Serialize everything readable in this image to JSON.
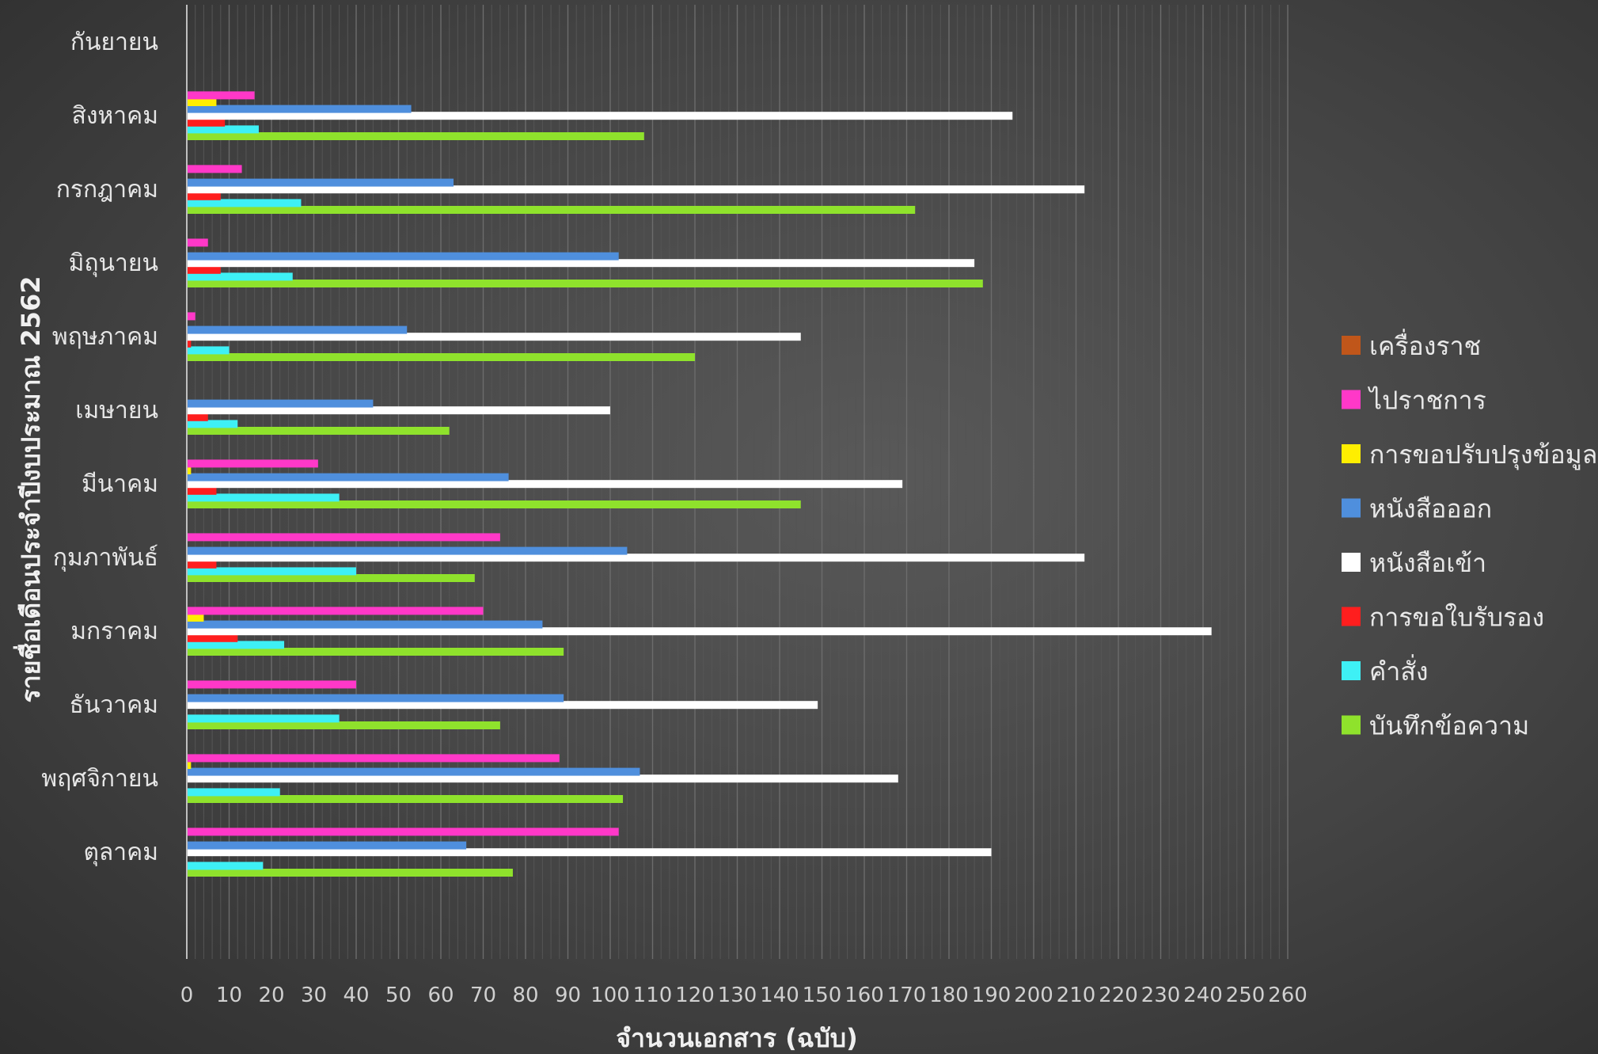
{
  "chart_data": {
    "type": "bar",
    "orientation": "horizontal",
    "xlabel": "จำนวนเอกสาร (ฉบับ)",
    "ylabel": "รายชื่อเดือนประจำปีงบประมาณ 2562",
    "xlim": [
      0,
      260
    ],
    "xticks": [
      "0",
      "10",
      "20",
      "30",
      "40",
      "50",
      "60",
      "70",
      "80",
      "90",
      "100",
      "110",
      "120",
      "130",
      "140",
      "150",
      "160",
      "170",
      "180",
      "190",
      "200",
      "210",
      "220",
      "230",
      "240",
      "250",
      "260"
    ],
    "grid": "vertical",
    "legend_position": "right",
    "categories": [
      "ตุลาคม",
      "พฤศจิกายน",
      "ธันวาคม",
      "มกราคม",
      "กุมภาพันธ์",
      "มีนาคม",
      "เมษายน",
      "พฤษภาคม",
      "มิถุนายน",
      "กรกฎาคม",
      "สิงหาคม",
      "กันยายน"
    ],
    "series": [
      {
        "name": "บันทึกข้อความ",
        "color": "#8fe22c",
        "values": [
          77,
          103,
          74,
          89,
          68,
          145,
          62,
          120,
          188,
          172,
          108,
          0
        ]
      },
      {
        "name": "คำสั่ง",
        "color": "#3ef0f5",
        "values": [
          18,
          22,
          36,
          23,
          40,
          36,
          12,
          10,
          25,
          27,
          17,
          0
        ]
      },
      {
        "name": "การขอใบรับรอง",
        "color": "#ff1e1e",
        "values": [
          0,
          0,
          0,
          12,
          7,
          7,
          5,
          1,
          8,
          8,
          9,
          0
        ]
      },
      {
        "name": "หนังสือเข้า",
        "color": "#ffffff",
        "values": [
          190,
          168,
          149,
          242,
          212,
          169,
          100,
          145,
          186,
          212,
          195,
          0
        ]
      },
      {
        "name": "หนังสือออก",
        "color": "#4f8fdd",
        "values": [
          66,
          107,
          89,
          84,
          104,
          76,
          44,
          52,
          102,
          63,
          53,
          0
        ]
      },
      {
        "name": "การขอปรับปรุงข้อมูล",
        "color": "#ffee00",
        "values": [
          0,
          1,
          0,
          4,
          0,
          1,
          0,
          0,
          0,
          0,
          7,
          0
        ]
      },
      {
        "name": "ไปราชการ",
        "color": "#ff38c8",
        "values": [
          102,
          88,
          40,
          70,
          74,
          31,
          0,
          2,
          5,
          13,
          16,
          0
        ]
      },
      {
        "name": "เครื่องราช",
        "color": "#c0561a",
        "values": [
          0,
          0,
          0,
          0,
          0,
          0,
          0,
          0,
          0,
          0,
          0,
          0
        ]
      }
    ],
    "legend_order": [
      "เครื่องราช",
      "ไปราชการ",
      "การขอปรับปรุงข้อมูล",
      "หนังสือออก",
      "หนังสือเข้า",
      "การขอใบรับรอง",
      "คำสั่ง",
      "บันทึกข้อความ"
    ]
  }
}
